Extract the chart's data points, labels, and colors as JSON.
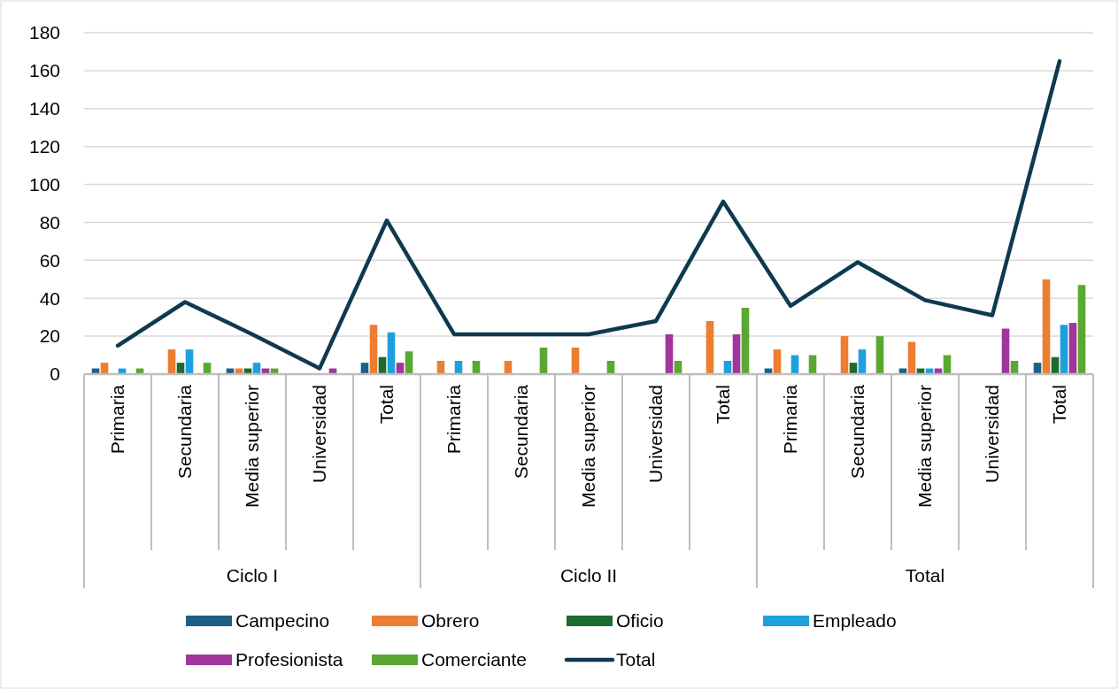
{
  "chart_data": {
    "type": "bar",
    "categories": [
      "Primaria",
      "Secundaria",
      "Media superior",
      "Universidad",
      "Total",
      "Primaria",
      "Secundaria",
      "Media superior",
      "Universidad",
      "Total",
      "Primaria",
      "Secundaria",
      "Media superior",
      "Universidad",
      "Total"
    ],
    "annotations": [
      "Ciclo I",
      "Ciclo II",
      "Total"
    ],
    "ylim": [
      0,
      180
    ],
    "yticks": [
      0,
      20,
      40,
      60,
      80,
      100,
      120,
      140,
      160,
      180
    ],
    "grid": "y",
    "legend": "bottom",
    "series": [
      {
        "name": "Campecino",
        "color": "#1f5f85",
        "values": [
          3,
          null,
          3,
          null,
          6,
          null,
          null,
          null,
          null,
          null,
          3,
          null,
          3,
          null,
          6
        ]
      },
      {
        "name": "Obrero",
        "color": "#ed7d31",
        "values": [
          6,
          13,
          3,
          null,
          26,
          7,
          7,
          14,
          null,
          28,
          13,
          20,
          17,
          null,
          50
        ]
      },
      {
        "name": "Oficio",
        "color": "#1e6b2e",
        "values": [
          null,
          6,
          3,
          null,
          9,
          null,
          null,
          null,
          null,
          null,
          null,
          6,
          3,
          null,
          9
        ]
      },
      {
        "name": "Empleado",
        "color": "#1ea0dc",
        "values": [
          3,
          13,
          6,
          null,
          22,
          7,
          null,
          null,
          null,
          7,
          10,
          13,
          3,
          null,
          26
        ]
      },
      {
        "name": "Profesionista",
        "color": "#a0369b",
        "values": [
          null,
          null,
          3,
          3,
          6,
          null,
          null,
          null,
          21,
          21,
          null,
          null,
          3,
          24,
          27
        ]
      },
      {
        "name": "Comerciante",
        "color": "#5aa832",
        "values": [
          3,
          6,
          3,
          null,
          12,
          7,
          14,
          7,
          7,
          35,
          10,
          20,
          10,
          7,
          47
        ]
      },
      {
        "name": "Total",
        "type": "line",
        "color": "#0e3a4f",
        "values": [
          15,
          38,
          21,
          3,
          81,
          21,
          21,
          21,
          28,
          91,
          36,
          59,
          39,
          31,
          165
        ]
      }
    ]
  }
}
